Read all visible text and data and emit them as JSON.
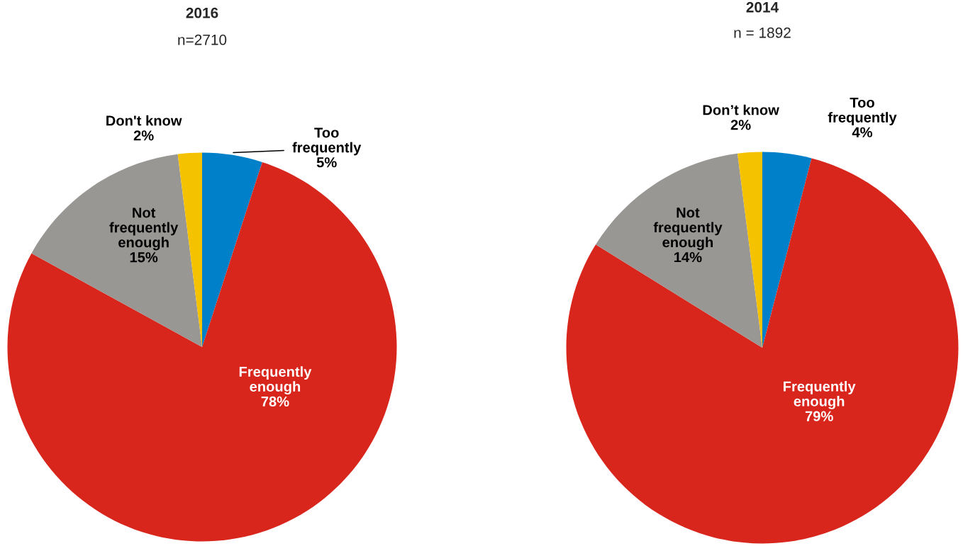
{
  "chart_data": [
    {
      "type": "pie",
      "title": "2016",
      "subtitle": "n=2710",
      "categories": [
        "Too\nfrequently",
        "Frequently\nenough",
        "Not\nfrequently\nenough",
        "Don't know"
      ],
      "values": [
        5,
        78,
        15,
        2
      ],
      "value_labels": [
        "5%",
        "78%",
        "15%",
        "2%"
      ],
      "colors": [
        "#0080c8",
        "#d9261c",
        "#999794",
        "#f5c200"
      ],
      "data_labels": false
    },
    {
      "type": "pie",
      "title": "2014",
      "subtitle": "n = 1892",
      "categories": [
        "Too\nfrequently",
        "Frequently\nenough",
        "Not\nfrequently\nenough",
        "Don’t know"
      ],
      "values": [
        4,
        79,
        14,
        2
      ],
      "value_labels": [
        "4%",
        "79%",
        "14%",
        "2%"
      ],
      "colors": [
        "#0080c8",
        "#d9261c",
        "#999794",
        "#f5c200"
      ],
      "data_labels": false
    }
  ]
}
